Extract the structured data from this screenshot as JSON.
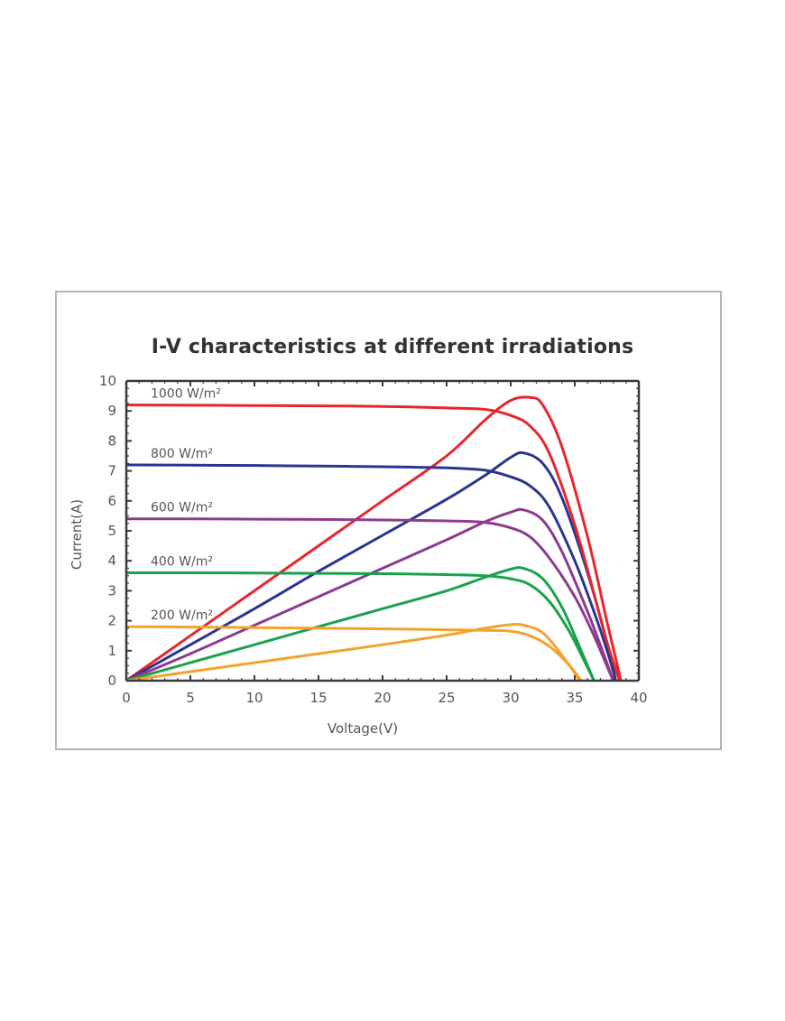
{
  "chart_data": {
    "type": "line",
    "title": "I-V characteristics at different irradiations",
    "xlabel": "Voltage(V)",
    "ylabel": "Current(A)",
    "xlim": [
      0,
      40
    ],
    "ylim": [
      0,
      10
    ],
    "xticks": [
      0,
      5,
      10,
      15,
      20,
      25,
      30,
      35,
      40
    ],
    "yticks": [
      0,
      1,
      2,
      3,
      4,
      5,
      6,
      7,
      8,
      9,
      10
    ],
    "grid": false,
    "series": [
      {
        "name": "1000 W/m²",
        "color": "#e8262b",
        "iv": [
          [
            0,
            9.2
          ],
          [
            5,
            9.19
          ],
          [
            10,
            9.18
          ],
          [
            15,
            9.17
          ],
          [
            20,
            9.15
          ],
          [
            25,
            9.1
          ],
          [
            28,
            9.05
          ],
          [
            30,
            8.85
          ],
          [
            31.5,
            8.5
          ],
          [
            33,
            7.6
          ],
          [
            35,
            5.2
          ],
          [
            36.5,
            2.9
          ],
          [
            37.5,
            1.3
          ],
          [
            38.5,
            0
          ]
        ],
        "power": [
          [
            0,
            0
          ],
          [
            5,
            1.5
          ],
          [
            10,
            3.0
          ],
          [
            15,
            4.5
          ],
          [
            20,
            6.0
          ],
          [
            25,
            7.5
          ],
          [
            28,
            8.7
          ],
          [
            30,
            9.35
          ],
          [
            31.5,
            9.45
          ],
          [
            32.5,
            9.2
          ],
          [
            34,
            7.8
          ],
          [
            36,
            4.8
          ],
          [
            37.5,
            2.0
          ],
          [
            38.6,
            0
          ]
        ]
      },
      {
        "name": "800 W/m²",
        "color": "#2b3491",
        "iv": [
          [
            0,
            7.2
          ],
          [
            5,
            7.19
          ],
          [
            10,
            7.18
          ],
          [
            15,
            7.16
          ],
          [
            20,
            7.14
          ],
          [
            25,
            7.1
          ],
          [
            28,
            7.02
          ],
          [
            30,
            6.8
          ],
          [
            31.5,
            6.5
          ],
          [
            33,
            5.8
          ],
          [
            35,
            4.0
          ],
          [
            36.5,
            2.3
          ],
          [
            37.6,
            0.9
          ],
          [
            38.2,
            0
          ]
        ],
        "power": [
          [
            0,
            0
          ],
          [
            5,
            1.2
          ],
          [
            10,
            2.4
          ],
          [
            15,
            3.65
          ],
          [
            20,
            4.85
          ],
          [
            25,
            6.05
          ],
          [
            28,
            6.85
          ],
          [
            30,
            7.45
          ],
          [
            31,
            7.6
          ],
          [
            32.5,
            7.25
          ],
          [
            34,
            6.1
          ],
          [
            36,
            3.6
          ],
          [
            37.5,
            1.3
          ],
          [
            38.2,
            0
          ]
        ]
      },
      {
        "name": "600 W/m²",
        "color": "#8e3b8f",
        "iv": [
          [
            0,
            5.4
          ],
          [
            5,
            5.4
          ],
          [
            10,
            5.39
          ],
          [
            15,
            5.38
          ],
          [
            20,
            5.36
          ],
          [
            25,
            5.33
          ],
          [
            28,
            5.28
          ],
          [
            30,
            5.1
          ],
          [
            31.5,
            4.8
          ],
          [
            33,
            4.1
          ],
          [
            35,
            2.8
          ],
          [
            36.5,
            1.5
          ],
          [
            37.5,
            0.5
          ],
          [
            38,
            0
          ]
        ],
        "power": [
          [
            0,
            0
          ],
          [
            5,
            0.9
          ],
          [
            10,
            1.85
          ],
          [
            15,
            2.8
          ],
          [
            20,
            3.75
          ],
          [
            25,
            4.7
          ],
          [
            28,
            5.3
          ],
          [
            30,
            5.62
          ],
          [
            31,
            5.7
          ],
          [
            32.5,
            5.35
          ],
          [
            34,
            4.3
          ],
          [
            36,
            2.3
          ],
          [
            37.5,
            0.6
          ],
          [
            38,
            0
          ]
        ]
      },
      {
        "name": "400 W/m²",
        "color": "#1aa24a",
        "iv": [
          [
            0,
            3.6
          ],
          [
            5,
            3.6
          ],
          [
            10,
            3.59
          ],
          [
            15,
            3.58
          ],
          [
            20,
            3.57
          ],
          [
            25,
            3.54
          ],
          [
            28,
            3.5
          ],
          [
            30,
            3.4
          ],
          [
            31.5,
            3.2
          ],
          [
            33,
            2.65
          ],
          [
            34.5,
            1.7
          ],
          [
            35.7,
            0.7
          ],
          [
            36.5,
            0
          ]
        ],
        "power": [
          [
            0,
            0
          ],
          [
            5,
            0.6
          ],
          [
            10,
            1.2
          ],
          [
            15,
            1.8
          ],
          [
            20,
            2.4
          ],
          [
            25,
            3.0
          ],
          [
            28,
            3.45
          ],
          [
            30,
            3.72
          ],
          [
            31,
            3.75
          ],
          [
            32.5,
            3.4
          ],
          [
            34,
            2.45
          ],
          [
            35.5,
            1.0
          ],
          [
            36.5,
            0
          ]
        ]
      },
      {
        "name": "200 W/m²",
        "color": "#f3a32d",
        "iv": [
          [
            0,
            1.8
          ],
          [
            5,
            1.79
          ],
          [
            10,
            1.77
          ],
          [
            15,
            1.75
          ],
          [
            20,
            1.73
          ],
          [
            25,
            1.7
          ],
          [
            28,
            1.68
          ],
          [
            30,
            1.65
          ],
          [
            31.5,
            1.5
          ],
          [
            33,
            1.15
          ],
          [
            34.5,
            0.55
          ],
          [
            35.5,
            0
          ]
        ],
        "power": [
          [
            0,
            0
          ],
          [
            5,
            0.3
          ],
          [
            10,
            0.6
          ],
          [
            15,
            0.9
          ],
          [
            20,
            1.2
          ],
          [
            25,
            1.52
          ],
          [
            28,
            1.75
          ],
          [
            30,
            1.87
          ],
          [
            31,
            1.85
          ],
          [
            32.5,
            1.6
          ],
          [
            34,
            0.85
          ],
          [
            35.4,
            0
          ]
        ]
      }
    ]
  }
}
